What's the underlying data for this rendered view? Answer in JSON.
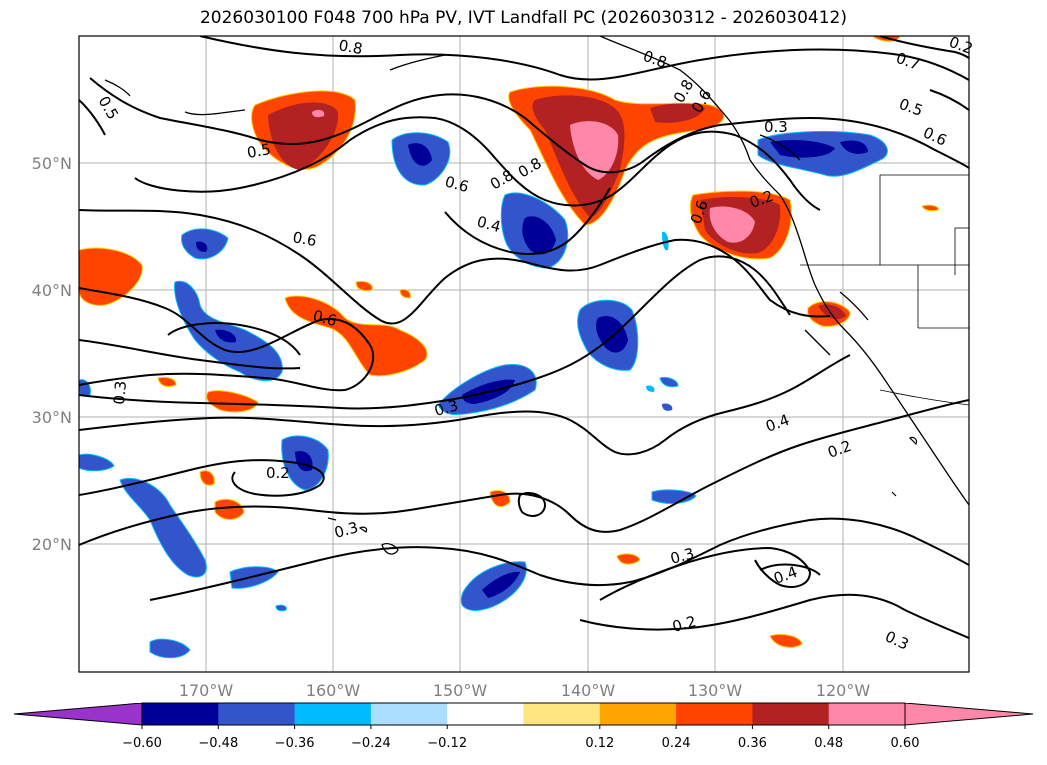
{
  "title": "2026030100 F048 700 hPa PV, IVT Landfall PC (2026030312 - 2026030412)",
  "map": {
    "lat_labels": [
      "50°N",
      "40°N",
      "30°N",
      "20°N"
    ],
    "lon_labels": [
      "170°W",
      "160°W",
      "150°W",
      "140°W",
      "130°W",
      "120°W"
    ],
    "contour_labels": [
      "0.5",
      "0.5",
      "0.6",
      "0.6",
      "0.6",
      "0.8",
      "0.8",
      "0.4",
      "0.8",
      "0.8",
      "0.7",
      "0.5",
      "0.3",
      "0.2",
      "0.6",
      "0.3",
      "0.3",
      "0.2",
      "0.3",
      "0.4",
      "0.2",
      "0.3",
      "0.4",
      "0.2",
      "0.3",
      "0.6",
      "0.8",
      "0.6",
      "0.2"
    ]
  },
  "colorbar": {
    "tick_labels": [
      "−0.60",
      "−0.48",
      "−0.36",
      "−0.24",
      "−0.12",
      "0.12",
      "0.24",
      "0.36",
      "0.48",
      "0.60"
    ],
    "colors": [
      "#9933cc",
      "#000099",
      "#3355cc",
      "#00bbff",
      "#aaddff",
      "#ffffff",
      "#ffe680",
      "#ffa500",
      "#ff4400",
      "#b22222",
      "#ff88aa",
      "#ff88aa"
    ]
  }
}
